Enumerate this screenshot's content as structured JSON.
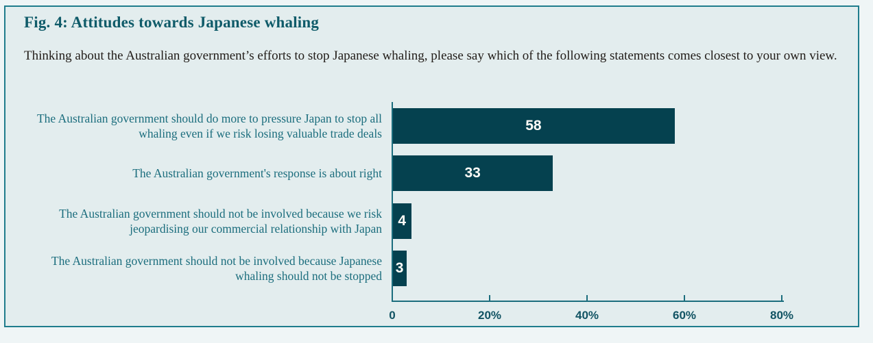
{
  "figure": {
    "title": "Fig. 4: Attitudes towards Japanese whaling",
    "subtitle": "Thinking about the Australian government’s efforts to stop Japanese whaling, please say which of the following statements comes closest to your own view."
  },
  "colors": {
    "frame_border": "#1f7c8c",
    "panel_bg": "#e3edee",
    "page_bg": "#eff5f6",
    "bar_fill": "#05414f",
    "title_text": "#0f5b69",
    "label_text": "#1b6d7d",
    "body_text": "#211c18",
    "axis_text": "#115363",
    "value_text": "#fdfcf7"
  },
  "chart_data": {
    "type": "bar",
    "orientation": "horizontal",
    "title": "Fig. 4: Attitudes towards Japanese whaling",
    "xlabel": "",
    "ylabel": "",
    "categories": [
      "The Australian government should do more to pressure Japan to stop all whaling even if we risk losing valuable trade deals",
      "The Australian government's response is about right",
      "The Australian government should not be involved because we risk jeopardising our commercial relationship with Japan",
      "The Australian government should not be involved because Japanese whaling should not be stopped"
    ],
    "values": [
      58,
      33,
      4,
      3
    ],
    "value_labels": [
      "58",
      "33",
      "4",
      "3"
    ],
    "xlim": [
      0,
      80
    ],
    "x_ticks": [
      0,
      20,
      40,
      60,
      80
    ],
    "x_tick_labels": [
      "0",
      "20%",
      "40%",
      "60%",
      "80%"
    ],
    "grid": false,
    "legend": null
  }
}
